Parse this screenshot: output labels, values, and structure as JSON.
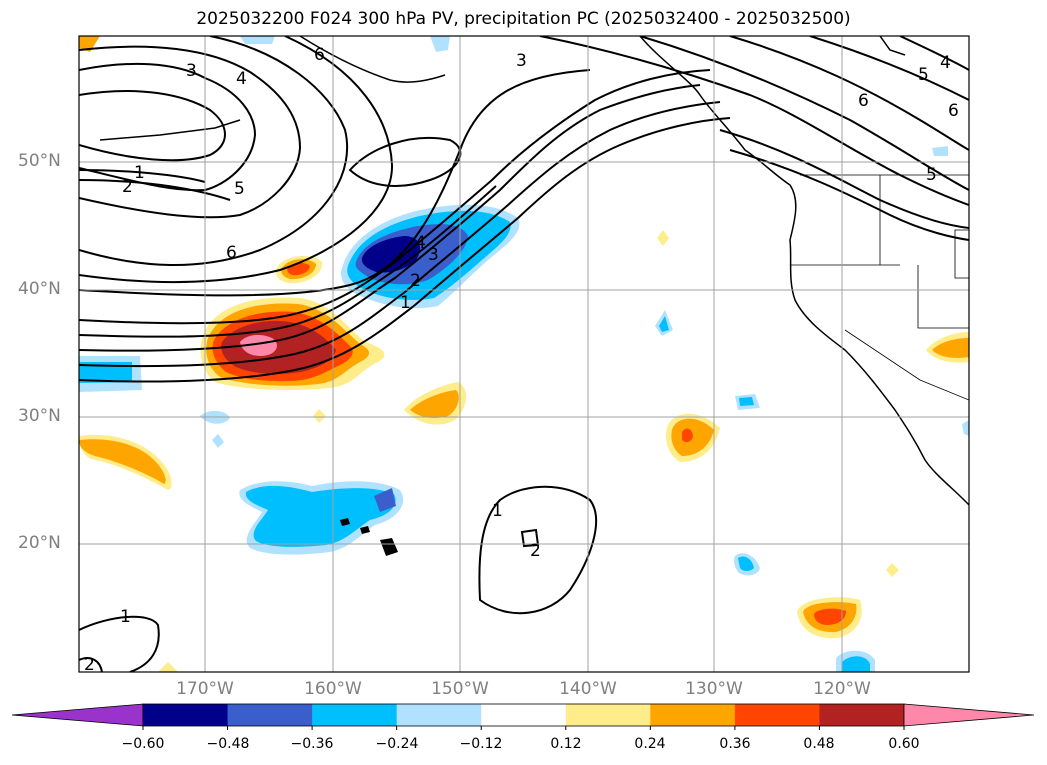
{
  "title": "2025032200 F024 300 hPa PV, precipitation PC (2025032400 - 2025032500)",
  "map": {
    "lat_labels": [
      "50°N",
      "40°N",
      "30°N",
      "20°N"
    ],
    "lon_labels": [
      "170°W",
      "160°W",
      "150°W",
      "140°W",
      "130°W",
      "120°W"
    ]
  },
  "pv_contour_labels": [
    "3",
    "4",
    "6",
    "3",
    "5",
    "4",
    "6",
    "6",
    "5",
    "1",
    "2",
    "5",
    "6",
    "4",
    "3",
    "2",
    "1",
    "1",
    "2",
    "1",
    "2"
  ],
  "colorbar": {
    "colors": [
      "#9933cc",
      "#00008b",
      "#3a5fcd",
      "#00bfff",
      "#b0e2ff",
      "#ffffff",
      "#ffec8b",
      "#ffa500",
      "#ff4500",
      "#b22222",
      "#ff88aa"
    ],
    "tick_labels": [
      "−0.60",
      "−0.48",
      "−0.36",
      "−0.24",
      "−0.12",
      "0.12",
      "0.24",
      "0.36",
      "0.48",
      "0.60"
    ]
  }
}
